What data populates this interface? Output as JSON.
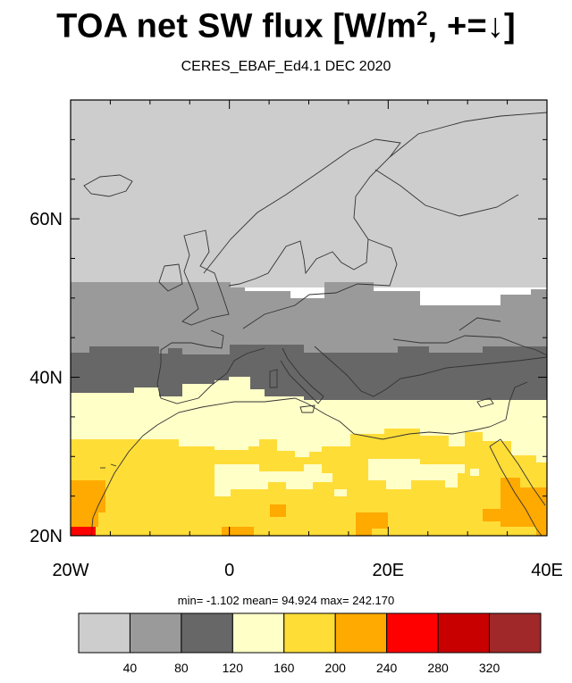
{
  "title": {
    "main": "TOA net SW flux [W/m",
    "superscript": "2",
    "suffix": ", +=↓]"
  },
  "subtitle": "CERES_EBAF_Ed4.1 DEC 2020",
  "stats": "min=  -1.102  mean=  94.924  max= 242.170",
  "map": {
    "lon_range": [
      -20,
      40
    ],
    "lat_range": [
      20,
      75
    ],
    "x_ticks": [
      {
        "value": -20,
        "label": "20W"
      },
      {
        "value": 0,
        "label": "0"
      },
      {
        "value": 20,
        "label": "20E"
      },
      {
        "value": 40,
        "label": "40E"
      }
    ],
    "y_ticks": [
      {
        "value": 40,
        "label": "40N"
      },
      {
        "value": 60,
        "label": "60N"
      },
      {
        "value": 20,
        "label": "20N"
      }
    ]
  },
  "colorbar": {
    "colors": [
      "#cdcdcd",
      "#9a9a9a",
      "#676767",
      "#ffffc8",
      "#ffdd37",
      "#ffaa00",
      "#ff0000",
      "#c80000",
      "#a02828"
    ],
    "labels": [
      "40",
      "80",
      "120",
      "160",
      "200",
      "240",
      "280",
      "320"
    ]
  }
}
